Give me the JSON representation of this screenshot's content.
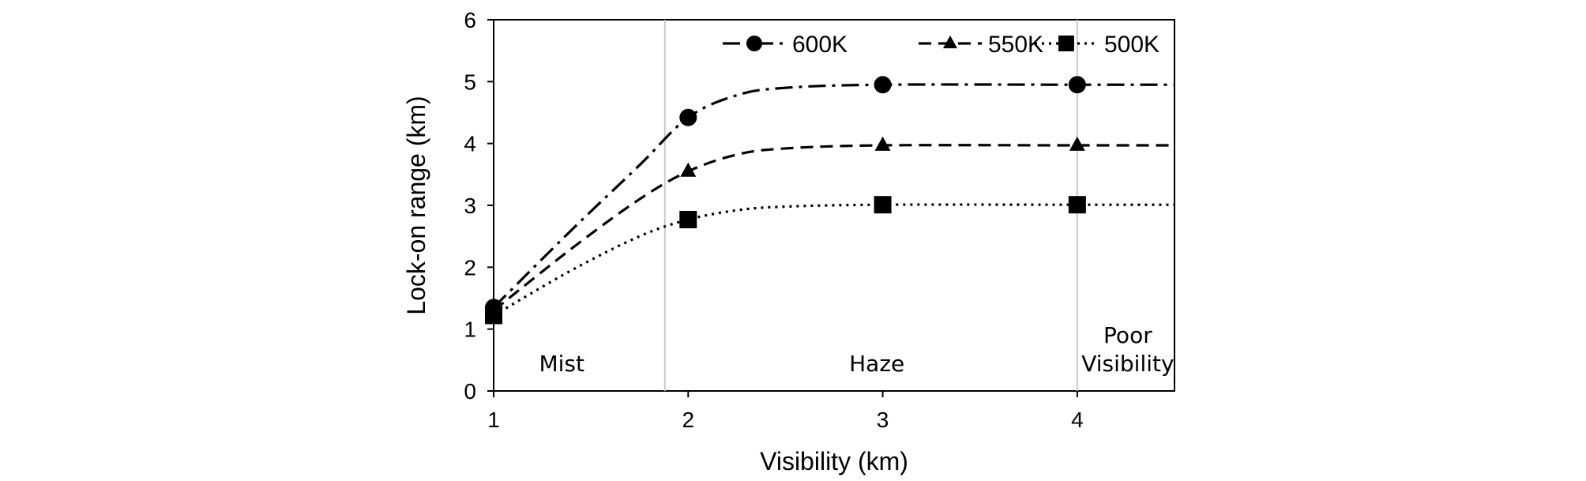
{
  "chart_data": {
    "type": "line",
    "xlabel": "Visibility (km)",
    "ylabel": "Lock-on range (km)",
    "xlim": [
      1,
      4.5
    ],
    "ylim": [
      0,
      6
    ],
    "x_ticks": [
      "1",
      "2",
      "3",
      "4"
    ],
    "y_ticks": [
      "0",
      "1",
      "2",
      "3",
      "4",
      "5",
      "6"
    ],
    "grid": false,
    "legend_position": "top-right",
    "series": [
      {
        "name": "600K",
        "marker": "circle",
        "line_style": "dash-dot",
        "color": "#000000",
        "points": [
          [
            1,
            1.35
          ],
          [
            2,
            4.42
          ],
          [
            3,
            4.95
          ],
          [
            4,
            4.95
          ]
        ],
        "curve": [
          [
            1,
            1.35
          ],
          [
            1.4,
            2.6
          ],
          [
            1.75,
            3.65
          ],
          [
            2,
            4.42
          ],
          [
            2.25,
            4.78
          ],
          [
            2.5,
            4.9
          ],
          [
            3,
            4.95
          ],
          [
            4,
            4.95
          ],
          [
            4.5,
            4.95
          ]
        ]
      },
      {
        "name": "550K",
        "marker": "triangle",
        "line_style": "dashed",
        "color": "#000000",
        "points": [
          [
            1,
            1.3
          ],
          [
            2,
            3.55
          ],
          [
            3,
            3.97
          ],
          [
            4,
            3.97
          ]
        ],
        "curve": [
          [
            1,
            1.3
          ],
          [
            1.4,
            2.3
          ],
          [
            1.75,
            3.1
          ],
          [
            2,
            3.55
          ],
          [
            2.25,
            3.82
          ],
          [
            2.5,
            3.92
          ],
          [
            3,
            3.97
          ],
          [
            4,
            3.97
          ],
          [
            4.5,
            3.97
          ]
        ]
      },
      {
        "name": "500K",
        "marker": "square",
        "line_style": "dotted",
        "color": "#000000",
        "points": [
          [
            1,
            1.22
          ],
          [
            2,
            2.77
          ],
          [
            3,
            3.01
          ],
          [
            4,
            3.01
          ]
        ],
        "curve": [
          [
            1,
            1.22
          ],
          [
            1.4,
            1.95
          ],
          [
            1.75,
            2.5
          ],
          [
            2,
            2.77
          ],
          [
            2.25,
            2.92
          ],
          [
            2.5,
            2.98
          ],
          [
            3,
            3.01
          ],
          [
            4,
            3.01
          ],
          [
            4.5,
            3.01
          ]
        ]
      }
    ],
    "region_dividers_x": [
      1.88,
      4
    ],
    "regions": [
      {
        "lines": [
          "Mist"
        ],
        "x": 1.35,
        "y": 0.45
      },
      {
        "lines": [
          "Haze"
        ],
        "x": 2.97,
        "y": 0.45
      },
      {
        "lines": [
          "Poor",
          "Visibility"
        ],
        "x": 4.26,
        "y": 0.45
      }
    ]
  }
}
